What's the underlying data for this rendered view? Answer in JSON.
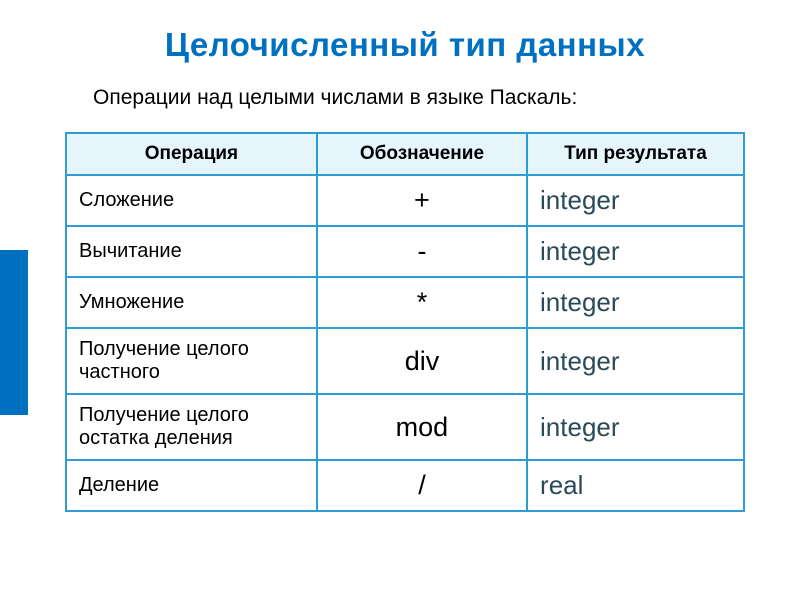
{
  "colors": {
    "accent_blue": "#0070c0",
    "border": "#2e9dd6",
    "header_bg": "#e6f4fb",
    "text": "#000000",
    "result_text": "#2a4a5a",
    "white": "#ffffff"
  },
  "fonts": {
    "title_size": 33,
    "subtitle_size": 21,
    "cell_size": 20,
    "header_size": 19,
    "symbol_size": 27,
    "result_size": 26
  },
  "title": "Целочисленный тип данных",
  "subtitle": "Операции над целыми числами в языке Паскаль:",
  "table": {
    "headers": [
      "Операция",
      "Обозначение",
      "Тип результата"
    ],
    "rows": [
      {
        "name": "Сложение",
        "symbol": "+",
        "result": "integer"
      },
      {
        "name": "Вычитание",
        "symbol": "-",
        "result": "integer"
      },
      {
        "name": "Умножение",
        "symbol": "*",
        "result": "integer"
      },
      {
        "name": "Получение целого частного",
        "symbol": "div",
        "result": "integer"
      },
      {
        "name": "Получение целого остатка деления",
        "symbol": "mod",
        "result": "integer"
      },
      {
        "name": "Деление",
        "symbol": "/",
        "result": "real"
      }
    ]
  }
}
